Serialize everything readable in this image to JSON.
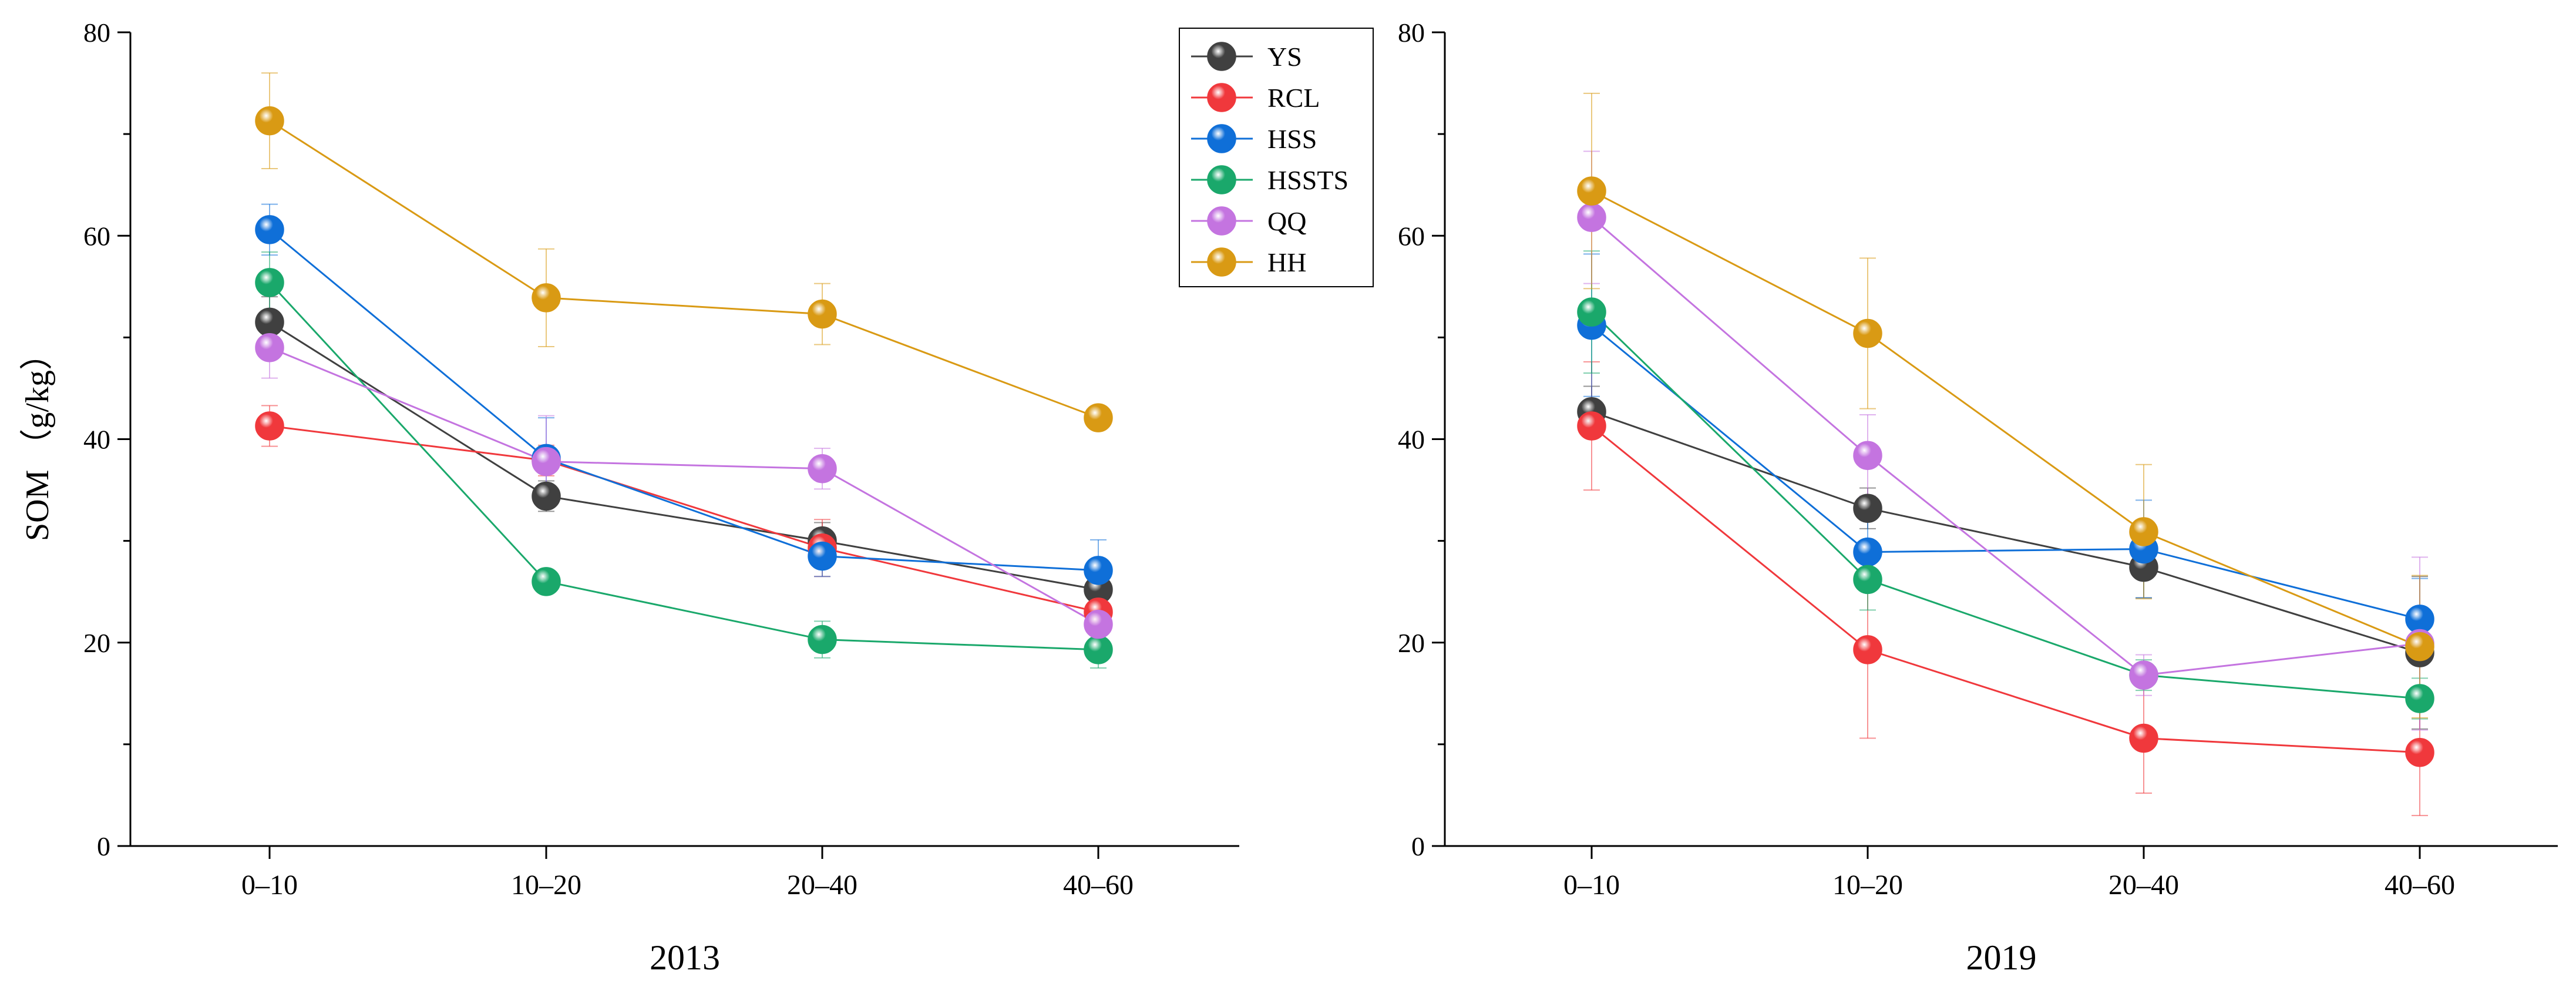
{
  "chart_data": [
    {
      "type": "line",
      "title": "2013",
      "xlabel": "2013",
      "ylabel": "SOM （g/kg）",
      "categories": [
        "0–10",
        "10–20",
        "20–40",
        "40–60"
      ],
      "ylim": [
        0,
        80
      ],
      "yticks": [
        0,
        20,
        40,
        60,
        80
      ],
      "legend": "top-right",
      "grid": false,
      "series": [
        {
          "name": "YS",
          "color": "#404040",
          "values": [
            51.5,
            34.4,
            30.0,
            25.2
          ],
          "err": [
            2.5,
            1.5,
            1.8,
            1.5
          ]
        },
        {
          "name": "RCL",
          "color": "#f0383c",
          "values": [
            41.3,
            37.9,
            29.3,
            23.0
          ],
          "err": [
            2.0,
            1.5,
            2.8,
            1.5
          ]
        },
        {
          "name": "HSS",
          "color": "#0f6fd8",
          "values": [
            60.6,
            38.1,
            28.5,
            27.1
          ],
          "err": [
            2.5,
            4.0,
            2.0,
            3.0
          ]
        },
        {
          "name": "HSSTS",
          "color": "#1aa86b",
          "values": [
            55.4,
            26.0,
            20.3,
            19.3
          ],
          "err": [
            3.0,
            1.0,
            1.8,
            1.8
          ]
        },
        {
          "name": "QQ",
          "color": "#c474e0",
          "values": [
            49.0,
            37.8,
            37.1,
            21.8
          ],
          "err": [
            3.0,
            4.5,
            2.0,
            1.5
          ]
        },
        {
          "name": "HH",
          "color": "#d99a14",
          "values": [
            71.3,
            53.9,
            52.3,
            42.1
          ],
          "err": [
            4.7,
            4.8,
            3.0,
            0.8
          ]
        }
      ]
    },
    {
      "type": "line",
      "title": "2019",
      "xlabel": "2019",
      "ylabel": "",
      "categories": [
        "0–10",
        "10–20",
        "20–40",
        "40–60"
      ],
      "ylim": [
        0,
        80
      ],
      "yticks": [
        0,
        20,
        40,
        60,
        80
      ],
      "grid": false,
      "series": [
        {
          "name": "YS",
          "color": "#404040",
          "values": [
            42.7,
            33.2,
            27.4,
            19.0
          ],
          "err": [
            2.5,
            2.0,
            3.0,
            7.5
          ]
        },
        {
          "name": "RCL",
          "color": "#f0383c",
          "values": [
            41.3,
            19.3,
            10.6,
            9.2
          ],
          "err": [
            6.3,
            8.7,
            5.4,
            6.2
          ]
        },
        {
          "name": "HSS",
          "color": "#0f6fd8",
          "values": [
            51.2,
            28.9,
            29.2,
            22.3
          ],
          "err": [
            7.0,
            3.5,
            4.8,
            4.0
          ]
        },
        {
          "name": "HSSTS",
          "color": "#1aa86b",
          "values": [
            52.5,
            26.2,
            16.8,
            14.5
          ],
          "err": [
            6.0,
            3.0,
            1.5,
            2.0
          ]
        },
        {
          "name": "QQ",
          "color": "#c474e0",
          "values": [
            61.8,
            38.4,
            16.8,
            19.9
          ],
          "err": [
            6.5,
            4.0,
            2.0,
            8.5
          ]
        },
        {
          "name": "HH",
          "color": "#d99a14",
          "values": [
            64.4,
            50.4,
            30.9,
            19.6
          ],
          "err": [
            9.6,
            7.4,
            6.6,
            7.0
          ]
        }
      ]
    }
  ]
}
